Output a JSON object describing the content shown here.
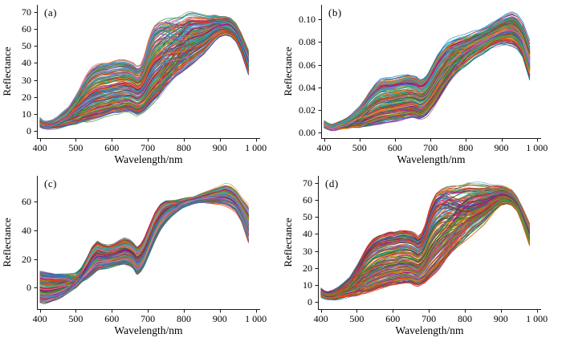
{
  "figure": {
    "background": "#ffffff",
    "axis_color": "#1a1a1a",
    "tick_length": 4,
    "line_alpha": 0.92,
    "line_width": 0.7
  },
  "palette": [
    "#d62728",
    "#2ca02c",
    "#1f77b4",
    "#ff7f0e",
    "#9467bd",
    "#8c564b",
    "#e377c2",
    "#17becf",
    "#bcbd22",
    "#0b6623",
    "#c2185b",
    "#00708a",
    "#b8860b",
    "#5e35b1",
    "#dc143c",
    "#228b22",
    "#4169e1",
    "#ff4500",
    "#8b008b",
    "#2e8b57",
    "#6b8e23",
    "#b22222",
    "#5f9ea0",
    "#e53935"
  ],
  "x_axis": {
    "label": "Wavelength/nm",
    "tick_values": [
      400,
      500,
      600,
      700,
      800,
      900,
      1000
    ],
    "tick_labels": [
      "400",
      "500",
      "600",
      "700",
      "800",
      "900",
      "1 000"
    ],
    "xlim": [
      392,
      1012
    ],
    "data_range_nm": [
      400,
      980
    ]
  },
  "wavelength_keypoints": [
    400,
    410,
    420,
    435,
    450,
    465,
    480,
    500,
    515,
    530,
    545,
    560,
    575,
    590,
    605,
    620,
    635,
    650,
    660,
    670,
    680,
    690,
    700,
    710,
    720,
    735,
    750,
    765,
    780,
    795,
    810,
    825,
    840,
    855,
    870,
    885,
    900,
    915,
    930,
    945,
    960,
    980
  ],
  "chart_data": [
    {
      "type": "line",
      "panel_label": "(a)",
      "xlabel": "Wavelength/nm",
      "ylabel": "Reflectance",
      "y_ticks": {
        "values": [
          0,
          10,
          20,
          30,
          40,
          50,
          60,
          70
        ],
        "labels": [
          "0",
          "10",
          "20",
          "30",
          "40",
          "50",
          "60",
          "70"
        ]
      },
      "ylim": [
        -4,
        74
      ],
      "upper_envelope": [
        8,
        6,
        6,
        7,
        9,
        12,
        15,
        22,
        28,
        33,
        37,
        39,
        40,
        40,
        41,
        42,
        42,
        41,
        40,
        38,
        39,
        44,
        52,
        58,
        62,
        65,
        67,
        68,
        69,
        70,
        72,
        72,
        71,
        70,
        69,
        69,
        68,
        68,
        67,
        64,
        58,
        48
      ],
      "lower_envelope": [
        2.5,
        1.5,
        1.2,
        1.3,
        1.5,
        2,
        2.5,
        3,
        4,
        5,
        6,
        7,
        8,
        9,
        10,
        10,
        11,
        11,
        10,
        9,
        10,
        11,
        13,
        15,
        17,
        20,
        24,
        27,
        30,
        32,
        35,
        38,
        41,
        44,
        48,
        52,
        55,
        56,
        55,
        52,
        45,
        32
      ],
      "ensemble": {
        "count": 190,
        "blue_mix": 0.35,
        "nir_mix": 0.55,
        "noise": 0.8,
        "seed": 11
      }
    },
    {
      "type": "line",
      "panel_label": "(b)",
      "xlabel": "Wavelength/nm",
      "ylabel": "Reflectance",
      "y_ticks": {
        "values": [
          0.0,
          0.02,
          0.04,
          0.06,
          0.08,
          0.1
        ],
        "labels": [
          "0.00",
          "0.02",
          "0.04",
          "0.06",
          "0.08",
          "0.10"
        ]
      },
      "ylim": [
        -0.005,
        0.113
      ],
      "upper_envelope": [
        0.01,
        0.008,
        0.007,
        0.008,
        0.01,
        0.013,
        0.017,
        0.024,
        0.03,
        0.037,
        0.043,
        0.047,
        0.048,
        0.048,
        0.049,
        0.05,
        0.051,
        0.05,
        0.049,
        0.046,
        0.047,
        0.05,
        0.056,
        0.062,
        0.068,
        0.075,
        0.081,
        0.084,
        0.086,
        0.087,
        0.089,
        0.091,
        0.092,
        0.094,
        0.097,
        0.1,
        0.103,
        0.106,
        0.108,
        0.106,
        0.099,
        0.082
      ],
      "lower_envelope": [
        0.004,
        0.003,
        0.002,
        0.002,
        0.003,
        0.003,
        0.004,
        0.004,
        0.005,
        0.006,
        0.007,
        0.008,
        0.009,
        0.01,
        0.011,
        0.012,
        0.013,
        0.014,
        0.013,
        0.012,
        0.013,
        0.015,
        0.019,
        0.023,
        0.028,
        0.035,
        0.042,
        0.048,
        0.053,
        0.057,
        0.061,
        0.065,
        0.068,
        0.071,
        0.074,
        0.076,
        0.077,
        0.077,
        0.076,
        0.073,
        0.066,
        0.045
      ],
      "ensemble": {
        "count": 190,
        "blue_mix": 0.35,
        "nir_mix": 0.55,
        "noise": 0.0012,
        "seed": 22
      }
    },
    {
      "type": "line",
      "panel_label": "(c)",
      "xlabel": "Wavelength/nm",
      "ylabel": "Reflectance",
      "y_ticks": {
        "values": [
          0,
          20,
          40,
          60
        ],
        "labels": [
          "0",
          "20",
          "40",
          "60"
        ]
      },
      "ylim": [
        -15,
        78
      ],
      "upper_envelope": [
        12,
        11.5,
        11,
        10.5,
        10,
        9.8,
        9.6,
        10,
        13,
        20,
        28,
        32,
        30,
        29,
        30,
        32,
        34,
        33,
        31,
        28,
        30,
        34,
        40,
        46,
        52,
        58,
        61,
        61.5,
        62,
        62.5,
        63,
        63.5,
        65,
        66.5,
        68,
        70,
        71.5,
        73,
        72,
        69,
        64,
        59
      ],
      "lower_envelope": [
        -11,
        -12,
        -11.5,
        -10,
        -8.5,
        -6.5,
        -4,
        -1,
        3,
        6,
        9,
        12,
        13,
        14,
        15,
        15.5,
        16,
        15,
        13,
        8.5,
        11,
        15,
        21,
        27,
        33,
        40,
        45,
        49,
        52,
        55,
        57,
        58.5,
        59,
        59,
        58.5,
        58,
        57.5,
        56.5,
        55,
        52,
        45,
        29
      ],
      "ensemble": {
        "count": 190,
        "blue_mix": 0.92,
        "nir_mix": 0.5,
        "noise": 0.9,
        "seed": 33
      }
    },
    {
      "type": "line",
      "panel_label": "(d)",
      "xlabel": "Wavelength/nm",
      "ylabel": "Reflectance",
      "y_ticks": {
        "values": [
          0,
          10,
          20,
          30,
          40,
          50,
          60,
          70
        ],
        "labels": [
          "0",
          "10",
          "20",
          "30",
          "40",
          "50",
          "60",
          "70"
        ]
      },
      "ylim": [
        -4,
        74
      ],
      "upper_envelope": [
        8,
        6.5,
        6,
        7,
        9,
        12,
        15,
        22,
        28,
        33,
        37,
        39,
        40,
        41,
        41,
        42,
        42,
        41,
        40,
        38,
        40,
        45,
        53,
        59,
        63,
        66,
        68,
        69,
        70,
        71,
        72,
        71.5,
        71,
        70.5,
        70,
        69.5,
        69,
        68,
        66,
        62,
        56,
        47
      ],
      "lower_envelope": [
        3,
        2,
        1.5,
        1.5,
        2,
        2.5,
        3,
        3.5,
        4.5,
        5.5,
        6.5,
        7.5,
        8.5,
        9.5,
        10,
        10.5,
        11,
        11,
        10,
        9.5,
        10.5,
        11.5,
        13.5,
        15.5,
        17.5,
        20.5,
        24,
        27,
        30,
        33,
        36,
        39,
        42,
        45,
        49,
        53,
        56,
        57,
        56,
        53,
        45,
        32
      ],
      "ensemble": {
        "count": 190,
        "blue_mix": 0.35,
        "nir_mix": 0.55,
        "noise": 0.8,
        "seed": 44
      }
    }
  ]
}
